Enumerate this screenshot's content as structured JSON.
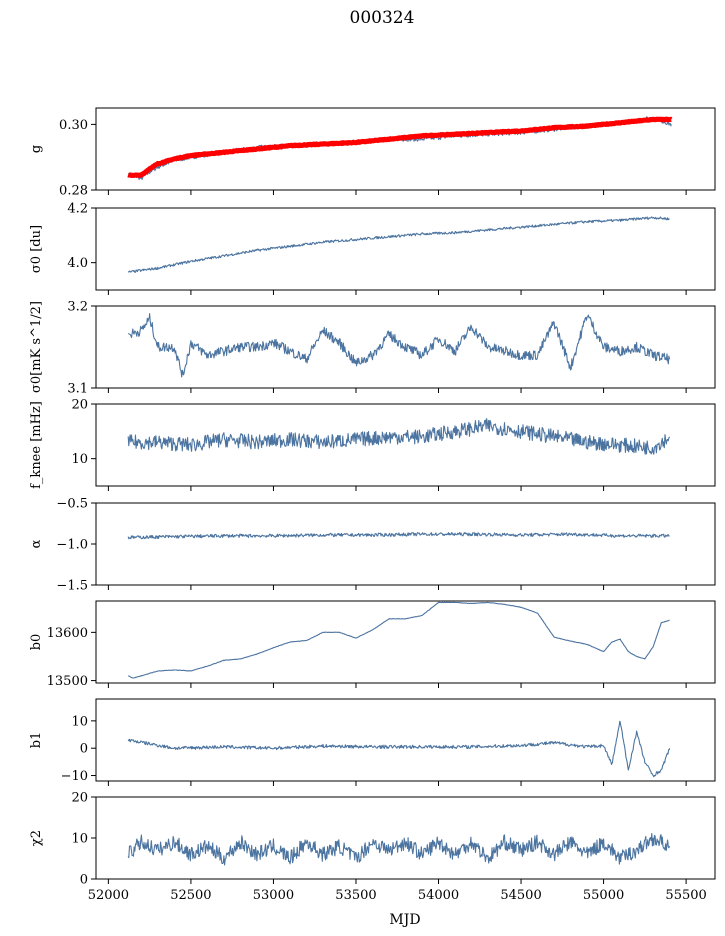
{
  "title": "000324",
  "xlabel": "MJD",
  "colors": {
    "series": "#4c74a0",
    "secondary": "#ff0000"
  },
  "chart_data": [
    {
      "type": "line",
      "ylabel": "g",
      "ylim": [
        0.28,
        0.305
      ],
      "yticks": [
        0.28,
        0.3
      ],
      "yticklabels": [
        "0.28",
        "0.30"
      ],
      "x": [
        52120,
        52150,
        52200,
        52250,
        52300,
        52400,
        52500,
        52700,
        52900,
        53100,
        53300,
        53500,
        53700,
        53900,
        54100,
        54300,
        54500,
        54700,
        54900,
        55100,
        55300,
        55410
      ],
      "series": [
        {
          "values": [
            0.2845,
            0.2845,
            0.2835,
            0.2855,
            0.287,
            0.289,
            0.29,
            0.2915,
            0.293,
            0.2935,
            0.294,
            0.2945,
            0.2955,
            0.2955,
            0.2965,
            0.297,
            0.2975,
            0.2985,
            0.2995,
            0.3005,
            0.302,
            0.3
          ]
        },
        {
          "values": [
            0.2845,
            0.2845,
            0.2845,
            0.2865,
            0.288,
            0.2895,
            0.2905,
            0.2915,
            0.2925,
            0.2935,
            0.294,
            0.2945,
            0.2955,
            0.2965,
            0.297,
            0.2975,
            0.298,
            0.299,
            0.2995,
            0.3005,
            0.3015,
            0.3015
          ]
        }
      ]
    },
    {
      "type": "line",
      "ylabel": "σ0 [du]",
      "ylim": [
        3.9,
        4.2
      ],
      "yticks": [
        4.0,
        4.2
      ],
      "yticklabels": [
        "4.0",
        "4.2"
      ],
      "x": [
        52120,
        52300,
        52500,
        52700,
        52900,
        53100,
        53300,
        53500,
        53700,
        53900,
        54100,
        54300,
        54500,
        54700,
        54900,
        55100,
        55300,
        55400
      ],
      "series": [
        {
          "values": [
            3.965,
            3.98,
            4.005,
            4.025,
            4.045,
            4.06,
            4.075,
            4.085,
            4.095,
            4.105,
            4.11,
            4.12,
            4.13,
            4.14,
            4.15,
            4.155,
            4.165,
            4.16
          ]
        }
      ]
    },
    {
      "type": "line",
      "ylabel": "σ0[mK s^1/2]",
      "ylim": [
        3.1,
        3.2
      ],
      "yticks": [
        3.1,
        3.2
      ],
      "yticklabels": [
        "3.1",
        "3.2"
      ],
      "x": [
        52120,
        52200,
        52250,
        52300,
        52400,
        52450,
        52500,
        52600,
        52700,
        52800,
        52900,
        53000,
        53100,
        53200,
        53300,
        53400,
        53500,
        53600,
        53700,
        53800,
        53900,
        54000,
        54100,
        54200,
        54300,
        54400,
        54500,
        54600,
        54700,
        54800,
        54900,
        55000,
        55100,
        55200,
        55300,
        55400
      ],
      "series": [
        {
          "values": [
            3.165,
            3.17,
            3.185,
            3.15,
            3.15,
            3.115,
            3.155,
            3.14,
            3.145,
            3.15,
            3.15,
            3.155,
            3.145,
            3.135,
            3.17,
            3.155,
            3.13,
            3.14,
            3.165,
            3.15,
            3.14,
            3.16,
            3.145,
            3.175,
            3.15,
            3.145,
            3.14,
            3.14,
            3.18,
            3.125,
            3.19,
            3.15,
            3.145,
            3.15,
            3.14,
            3.135
          ]
        }
      ]
    },
    {
      "type": "line",
      "ylabel": "f_knee [mHz]",
      "ylim": [
        5,
        20
      ],
      "yticks": [
        10,
        20
      ],
      "yticklabels": [
        "10",
        "20"
      ],
      "x": [
        52120,
        52300,
        52500,
        52700,
        52900,
        53100,
        53300,
        53500,
        53700,
        53900,
        54100,
        54300,
        54500,
        54700,
        54900,
        55100,
        55300,
        55400
      ],
      "series": [
        {
          "values": [
            13,
            13,
            12.5,
            13.5,
            13,
            13.5,
            13,
            13.5,
            14,
            14,
            15,
            16,
            15,
            14,
            13,
            12.5,
            12,
            14
          ]
        }
      ]
    },
    {
      "type": "line",
      "ylabel": "α",
      "ylim": [
        -1.5,
        -0.5
      ],
      "yticks": [
        -1.5,
        -1.0,
        -0.5
      ],
      "yticklabels": [
        "−1.5",
        "−1.0",
        "−0.5"
      ],
      "x": [
        52120,
        52400,
        52700,
        53000,
        53300,
        53600,
        53900,
        54200,
        54500,
        54800,
        55100,
        55400
      ],
      "series": [
        {
          "values": [
            -0.92,
            -0.91,
            -0.9,
            -0.9,
            -0.89,
            -0.89,
            -0.88,
            -0.88,
            -0.89,
            -0.88,
            -0.9,
            -0.9
          ]
        }
      ]
    },
    {
      "type": "line",
      "ylabel": "b0",
      "ylim": [
        13495,
        13665
      ],
      "yticks": [
        13500,
        13600
      ],
      "yticklabels": [
        "13500",
        "13600"
      ],
      "x": [
        52120,
        52150,
        52300,
        52400,
        52500,
        52600,
        52700,
        52800,
        52900,
        53000,
        53100,
        53200,
        53300,
        53400,
        53500,
        53600,
        53700,
        53800,
        53900,
        54000,
        54100,
        54200,
        54300,
        54400,
        54500,
        54600,
        54700,
        54800,
        54900,
        55000,
        55050,
        55100,
        55150,
        55200,
        55250,
        55300,
        55350,
        55400
      ],
      "series": [
        {
          "values": [
            13510,
            13505,
            13520,
            13522,
            13520,
            13530,
            13542,
            13545,
            13555,
            13568,
            13580,
            13583,
            13600,
            13600,
            13588,
            13605,
            13628,
            13628,
            13635,
            13662,
            13662,
            13660,
            13662,
            13658,
            13652,
            13640,
            13590,
            13582,
            13575,
            13560,
            13580,
            13586,
            13560,
            13550,
            13545,
            13570,
            13620,
            13625
          ]
        }
      ]
    },
    {
      "type": "line",
      "ylabel": "b1",
      "ylim": [
        -12,
        18
      ],
      "yticks": [
        -10,
        0,
        10
      ],
      "yticklabels": [
        "−10",
        "0",
        "10"
      ],
      "x": [
        52120,
        52400,
        52700,
        53000,
        53300,
        53600,
        53900,
        54200,
        54500,
        54700,
        54900,
        55000,
        55050,
        55100,
        55150,
        55200,
        55250,
        55300,
        55350,
        55400
      ],
      "series": [
        {
          "values": [
            3,
            0,
            0.5,
            0,
            0.8,
            0.5,
            0.5,
            0.5,
            1,
            2,
            0.5,
            1,
            -6,
            10,
            -8,
            6,
            -5,
            -10,
            -8,
            0
          ]
        }
      ]
    },
    {
      "type": "line",
      "ylabel": "χ2",
      "ylim": [
        0,
        20
      ],
      "yticks": [
        0,
        10,
        20
      ],
      "yticklabels": [
        "0",
        "10",
        "20"
      ],
      "x": [
        52120,
        52200,
        52300,
        52400,
        52500,
        52600,
        52700,
        52800,
        52900,
        53000,
        53100,
        53200,
        53300,
        53400,
        53500,
        53600,
        53700,
        53800,
        53900,
        54000,
        54100,
        54200,
        54300,
        54400,
        54500,
        54600,
        54700,
        54800,
        54900,
        55000,
        55100,
        55200,
        55300,
        55400
      ],
      "series": [
        {
          "values": [
            6,
            9,
            7,
            9,
            6,
            8,
            5,
            9,
            6,
            8,
            5,
            9,
            6,
            8,
            5,
            9,
            7,
            9,
            6,
            9,
            6,
            9,
            5,
            9,
            7,
            9,
            6,
            9,
            6,
            9,
            5,
            7,
            10,
            8
          ]
        }
      ]
    }
  ],
  "xaxis": {
    "xlim": [
      51925,
      55675
    ],
    "xticks": [
      52000,
      52500,
      53000,
      53500,
      54000,
      54500,
      55000,
      55500
    ],
    "xticklabels": [
      "52000",
      "52500",
      "53000",
      "53500",
      "54000",
      "54500",
      "55000",
      "55500"
    ]
  }
}
